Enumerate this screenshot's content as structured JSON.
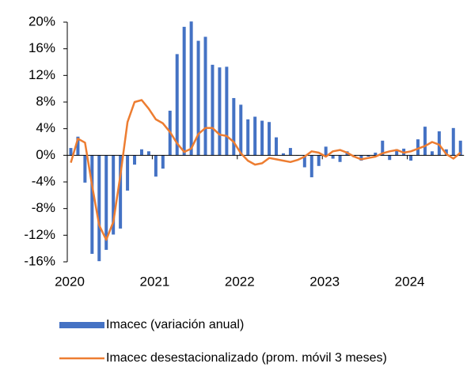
{
  "chart_data": {
    "type": "bar_line",
    "categories": [
      "2020",
      null,
      null,
      null,
      null,
      null,
      null,
      null,
      null,
      null,
      null,
      null,
      "2021",
      null,
      null,
      null,
      null,
      null,
      null,
      null,
      null,
      null,
      null,
      null,
      "2022",
      null,
      null,
      null,
      null,
      null,
      null,
      null,
      null,
      null,
      null,
      null,
      "2023",
      null,
      null,
      null,
      null,
      null,
      null,
      null,
      null,
      null,
      null,
      null,
      "2024",
      null,
      null,
      null,
      null,
      null,
      null,
      null
    ],
    "series": [
      {
        "name": "Imacec (variación anual)",
        "type": "bar",
        "color": "#4472c4",
        "values": [
          1.1,
          2.8,
          -4.1,
          -14.8,
          -15.9,
          -14.2,
          -11.9,
          -11.0,
          -5.3,
          -1.4,
          0.9,
          0.6,
          -3.2,
          -2.0,
          6.7,
          15.2,
          19.3,
          20.1,
          17.2,
          17.8,
          13.6,
          13.2,
          13.3,
          8.6,
          7.6,
          5.4,
          5.8,
          5.2,
          5.0,
          2.7,
          0.3,
          1.1,
          0.0,
          -1.8,
          -3.3,
          -1.6,
          1.3,
          -0.5,
          -1.0,
          0.6,
          -0.3,
          -0.8,
          -0.2,
          0.4,
          2.2,
          -0.7,
          0.9,
          1.0,
          -0.8,
          2.4,
          4.3,
          0.6,
          3.6,
          0.9,
          4.1,
          2.2
        ]
      },
      {
        "name": "Imacec desestacionalizado (prom. móvil 3 meses)",
        "type": "line",
        "color": "#ed7d31",
        "values": [
          -1.1,
          2.5,
          1.9,
          -4.5,
          -10.5,
          -12.7,
          -10.0,
          -3.0,
          5.0,
          8.0,
          8.3,
          7.0,
          5.4,
          4.8,
          3.5,
          1.8,
          0.5,
          1.0,
          3.2,
          4.1,
          4.1,
          3.1,
          2.9,
          2.0,
          0.3,
          -0.8,
          -1.4,
          -1.2,
          -0.4,
          -0.6,
          -0.8,
          -1.0,
          -0.7,
          -0.2,
          0.6,
          0.4,
          -0.2,
          0.6,
          0.8,
          0.4,
          -0.2,
          -0.6,
          -0.4,
          -0.2,
          0.3,
          0.6,
          0.8,
          0.4,
          0.6,
          1.0,
          1.4,
          2.0,
          1.6,
          0.2,
          -0.5,
          0.4
        ]
      }
    ],
    "ylim": [
      -16,
      20
    ],
    "yticks": [
      {
        "value": -16,
        "label": "-16%"
      },
      {
        "value": -12,
        "label": "-12%"
      },
      {
        "value": -8,
        "label": "-8%"
      },
      {
        "value": -4,
        "label": "-4%"
      },
      {
        "value": 0,
        "label": "0%"
      },
      {
        "value": 4,
        "label": "4%"
      },
      {
        "value": 8,
        "label": "8%"
      },
      {
        "value": 12,
        "label": "12%"
      },
      {
        "value": 16,
        "label": "16%"
      },
      {
        "value": 20,
        "label": "20%"
      }
    ],
    "legend": "bottom"
  }
}
